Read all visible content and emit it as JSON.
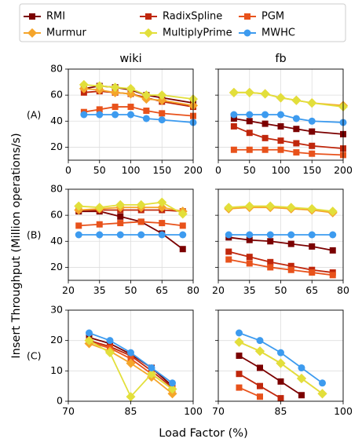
{
  "figure": {
    "ylabel": "Insert Throughput (Million operations/s)",
    "xlabel": "Load Factor (%)",
    "legend": [
      {
        "name": "RMI",
        "color": "#7b0000",
        "marker": "square"
      },
      {
        "name": "RadixSpline",
        "color": "#c0270c",
        "marker": "square"
      },
      {
        "name": "PGM",
        "color": "#e8521b",
        "marker": "square"
      },
      {
        "name": "Murmur",
        "color": "#f5a52b",
        "marker": "diamond"
      },
      {
        "name": "MultiplyPrime",
        "color": "#e2df3b",
        "marker": "diamond"
      },
      {
        "name": "MWHC",
        "color": "#3d9bef",
        "marker": "circle"
      }
    ],
    "column_titles": [
      "wiki",
      "fb"
    ],
    "row_labels": [
      "(A)",
      "(B)",
      "(C)"
    ]
  },
  "chart_data": [
    {
      "id": "A-wiki",
      "type": "line",
      "title": "wiki",
      "xlim": [
        0,
        200
      ],
      "ylim": [
        10,
        80
      ],
      "xticks": [
        0,
        50,
        100,
        150,
        200
      ],
      "yticks": [
        20,
        40,
        60,
        80
      ],
      "series": [
        {
          "name": "RMI",
          "x": [
            25,
            50,
            75,
            100,
            125,
            150,
            200
          ],
          "values": [
            65,
            67,
            66,
            64,
            60,
            58,
            54
          ]
        },
        {
          "name": "RadixSpline",
          "x": [
            25,
            50,
            75,
            100,
            125,
            150,
            200
          ],
          "values": [
            62,
            63,
            62,
            61,
            58,
            55,
            51
          ]
        },
        {
          "name": "PGM",
          "x": [
            25,
            50,
            75,
            100,
            125,
            150,
            200
          ],
          "values": [
            47,
            49,
            51,
            51,
            48,
            46,
            44
          ]
        },
        {
          "name": "Murmur",
          "x": [
            25,
            50,
            75,
            100,
            125,
            150,
            200
          ],
          "values": [
            65,
            64,
            62,
            61,
            57,
            56,
            52
          ]
        },
        {
          "name": "MultiplyPrime",
          "x": [
            25,
            50,
            75,
            100,
            125,
            150,
            200
          ],
          "values": [
            68,
            67,
            66,
            65,
            60,
            60,
            57
          ]
        },
        {
          "name": "MWHC",
          "x": [
            25,
            50,
            75,
            100,
            125,
            150,
            200
          ],
          "values": [
            45,
            45,
            45,
            45,
            42,
            41,
            39
          ]
        }
      ]
    },
    {
      "id": "A-fb",
      "type": "line",
      "title": "fb",
      "xlim": [
        0,
        200
      ],
      "ylim": [
        10,
        80
      ],
      "xticks": [
        0,
        50,
        100,
        150,
        200
      ],
      "yticks": [
        20,
        40,
        60,
        80
      ],
      "series": [
        {
          "name": "RMI",
          "x": [
            25,
            50,
            75,
            100,
            125,
            150,
            200
          ],
          "values": [
            42,
            40,
            38,
            36,
            34,
            32,
            30
          ]
        },
        {
          "name": "RadixSpline",
          "x": [
            25,
            50,
            75,
            100,
            125,
            150,
            200
          ],
          "values": [
            36,
            31,
            27,
            25,
            23,
            21,
            19
          ]
        },
        {
          "name": "PGM",
          "x": [
            25,
            50,
            75,
            100,
            125,
            150,
            200
          ],
          "values": [
            18,
            18,
            18,
            18,
            16,
            15,
            14
          ]
        },
        {
          "name": "Murmur",
          "x": [
            25,
            50,
            75,
            100,
            125,
            150,
            200
          ],
          "values": [
            62,
            62,
            61,
            58,
            56,
            54,
            52
          ]
        },
        {
          "name": "MultiplyPrime",
          "x": [
            25,
            50,
            75,
            100,
            125,
            150,
            200
          ],
          "values": [
            62,
            62,
            61,
            58,
            56,
            54,
            51
          ]
        },
        {
          "name": "MWHC",
          "x": [
            25,
            50,
            75,
            100,
            125,
            150,
            200
          ],
          "values": [
            45,
            45,
            45,
            45,
            42,
            40,
            39
          ]
        }
      ]
    },
    {
      "id": "B-wiki",
      "type": "line",
      "xlim": [
        20,
        80
      ],
      "ylim": [
        10,
        80
      ],
      "xticks": [
        20,
        35,
        50,
        65,
        80
      ],
      "yticks": [
        20,
        40,
        60,
        80
      ],
      "series": [
        {
          "name": "RMI",
          "x": [
            25,
            35,
            45,
            55,
            65,
            75
          ],
          "values": [
            63,
            63,
            59,
            55,
            46,
            34
          ]
        },
        {
          "name": "RadixSpline",
          "x": [
            25,
            35,
            45,
            55,
            65,
            75
          ],
          "values": [
            64,
            64,
            64,
            64,
            64,
            63
          ]
        },
        {
          "name": "PGM",
          "x": [
            25,
            35,
            45,
            55,
            65,
            75
          ],
          "values": [
            52,
            53,
            54,
            55,
            54,
            52
          ]
        },
        {
          "name": "Murmur",
          "x": [
            25,
            35,
            45,
            55,
            65,
            75
          ],
          "values": [
            64,
            65,
            66,
            66,
            66,
            63
          ]
        },
        {
          "name": "MultiplyPrime",
          "x": [
            25,
            35,
            45,
            55,
            65,
            75
          ],
          "values": [
            67,
            66,
            68,
            68,
            70,
            61
          ]
        },
        {
          "name": "MWHC",
          "x": [
            25,
            35,
            45,
            55,
            65,
            75
          ],
          "values": [
            45,
            45,
            45,
            45,
            45,
            45
          ]
        }
      ]
    },
    {
      "id": "B-fb",
      "type": "line",
      "xlim": [
        20,
        80
      ],
      "ylim": [
        10,
        80
      ],
      "xticks": [
        20,
        35,
        50,
        65,
        80
      ],
      "yticks": [
        20,
        40,
        60,
        80
      ],
      "series": [
        {
          "name": "RMI",
          "x": [
            25,
            35,
            45,
            55,
            65,
            75
          ],
          "values": [
            43,
            41,
            40,
            38,
            36,
            33
          ]
        },
        {
          "name": "RadixSpline",
          "x": [
            25,
            35,
            45,
            55,
            65,
            75
          ],
          "values": [
            32,
            28,
            24,
            21,
            18,
            16
          ]
        },
        {
          "name": "PGM",
          "x": [
            25,
            35,
            45,
            55,
            65,
            75
          ],
          "values": [
            26,
            23,
            20,
            18,
            16,
            14
          ]
        },
        {
          "name": "Murmur",
          "x": [
            25,
            35,
            45,
            55,
            65,
            75
          ],
          "values": [
            65,
            66,
            66,
            65,
            64,
            62
          ]
        },
        {
          "name": "MultiplyPrime",
          "x": [
            25,
            35,
            45,
            55,
            65,
            75
          ],
          "values": [
            66,
            67,
            67,
            66,
            65,
            63
          ]
        },
        {
          "name": "MWHC",
          "x": [
            25,
            35,
            45,
            55,
            65,
            75
          ],
          "values": [
            45,
            45,
            45,
            45,
            45,
            45
          ]
        }
      ]
    },
    {
      "id": "C-wiki",
      "type": "line",
      "xlim": [
        70,
        100
      ],
      "ylim": [
        0,
        30
      ],
      "xticks": [
        70,
        85,
        100
      ],
      "yticks": [
        0,
        10,
        20,
        30
      ],
      "series": [
        {
          "name": "RMI",
          "x": [
            75,
            80,
            85,
            90,
            95
          ],
          "values": [
            21,
            19,
            15.5,
            11,
            5
          ]
        },
        {
          "name": "RadixSpline",
          "x": [
            75,
            80,
            85,
            90,
            95
          ],
          "values": [
            20,
            18,
            15,
            10,
            4.5
          ]
        },
        {
          "name": "PGM",
          "x": [
            75,
            80,
            85,
            90,
            95
          ],
          "values": [
            19.5,
            17.5,
            14,
            9,
            4
          ]
        },
        {
          "name": "Murmur",
          "x": [
            75,
            80,
            85,
            90,
            95
          ],
          "values": [
            19,
            16.5,
            12.5,
            8,
            2.5
          ]
        },
        {
          "name": "MultiplyPrime",
          "x": [
            75,
            80,
            85,
            90,
            95
          ],
          "values": [
            20,
            16,
            1.5,
            9,
            4
          ]
        },
        {
          "name": "MWHC",
          "x": [
            75,
            80,
            85,
            90,
            95
          ],
          "values": [
            22.5,
            20,
            16,
            11,
            6
          ]
        }
      ]
    },
    {
      "id": "C-fb",
      "type": "line",
      "xlim": [
        70,
        100
      ],
      "ylim": [
        0,
        30
      ],
      "xticks": [
        70,
        85,
        100
      ],
      "yticks": [
        0,
        10,
        20,
        30
      ],
      "series": [
        {
          "name": "RMI",
          "x": [
            75,
            80,
            85,
            90
          ],
          "values": [
            15,
            11,
            6.5,
            2
          ]
        },
        {
          "name": "RadixSpline",
          "x": [
            75,
            80,
            85
          ],
          "values": [
            9,
            5,
            1
          ]
        },
        {
          "name": "PGM",
          "x": [
            75,
            80
          ],
          "values": [
            4.5,
            1.5
          ]
        },
        {
          "name": "Murmur",
          "x": [
            75,
            80,
            85,
            90,
            95
          ],
          "values": [
            19.5,
            16.5,
            12.5,
            7.5,
            2.5
          ]
        },
        {
          "name": "MultiplyPrime",
          "x": [
            75,
            80,
            85,
            90,
            95
          ],
          "values": [
            19.5,
            16.5,
            12.5,
            7.5,
            2.5
          ]
        },
        {
          "name": "MWHC",
          "x": [
            75,
            80,
            85,
            90,
            95
          ],
          "values": [
            22.5,
            20,
            16,
            11,
            6
          ]
        }
      ]
    }
  ]
}
